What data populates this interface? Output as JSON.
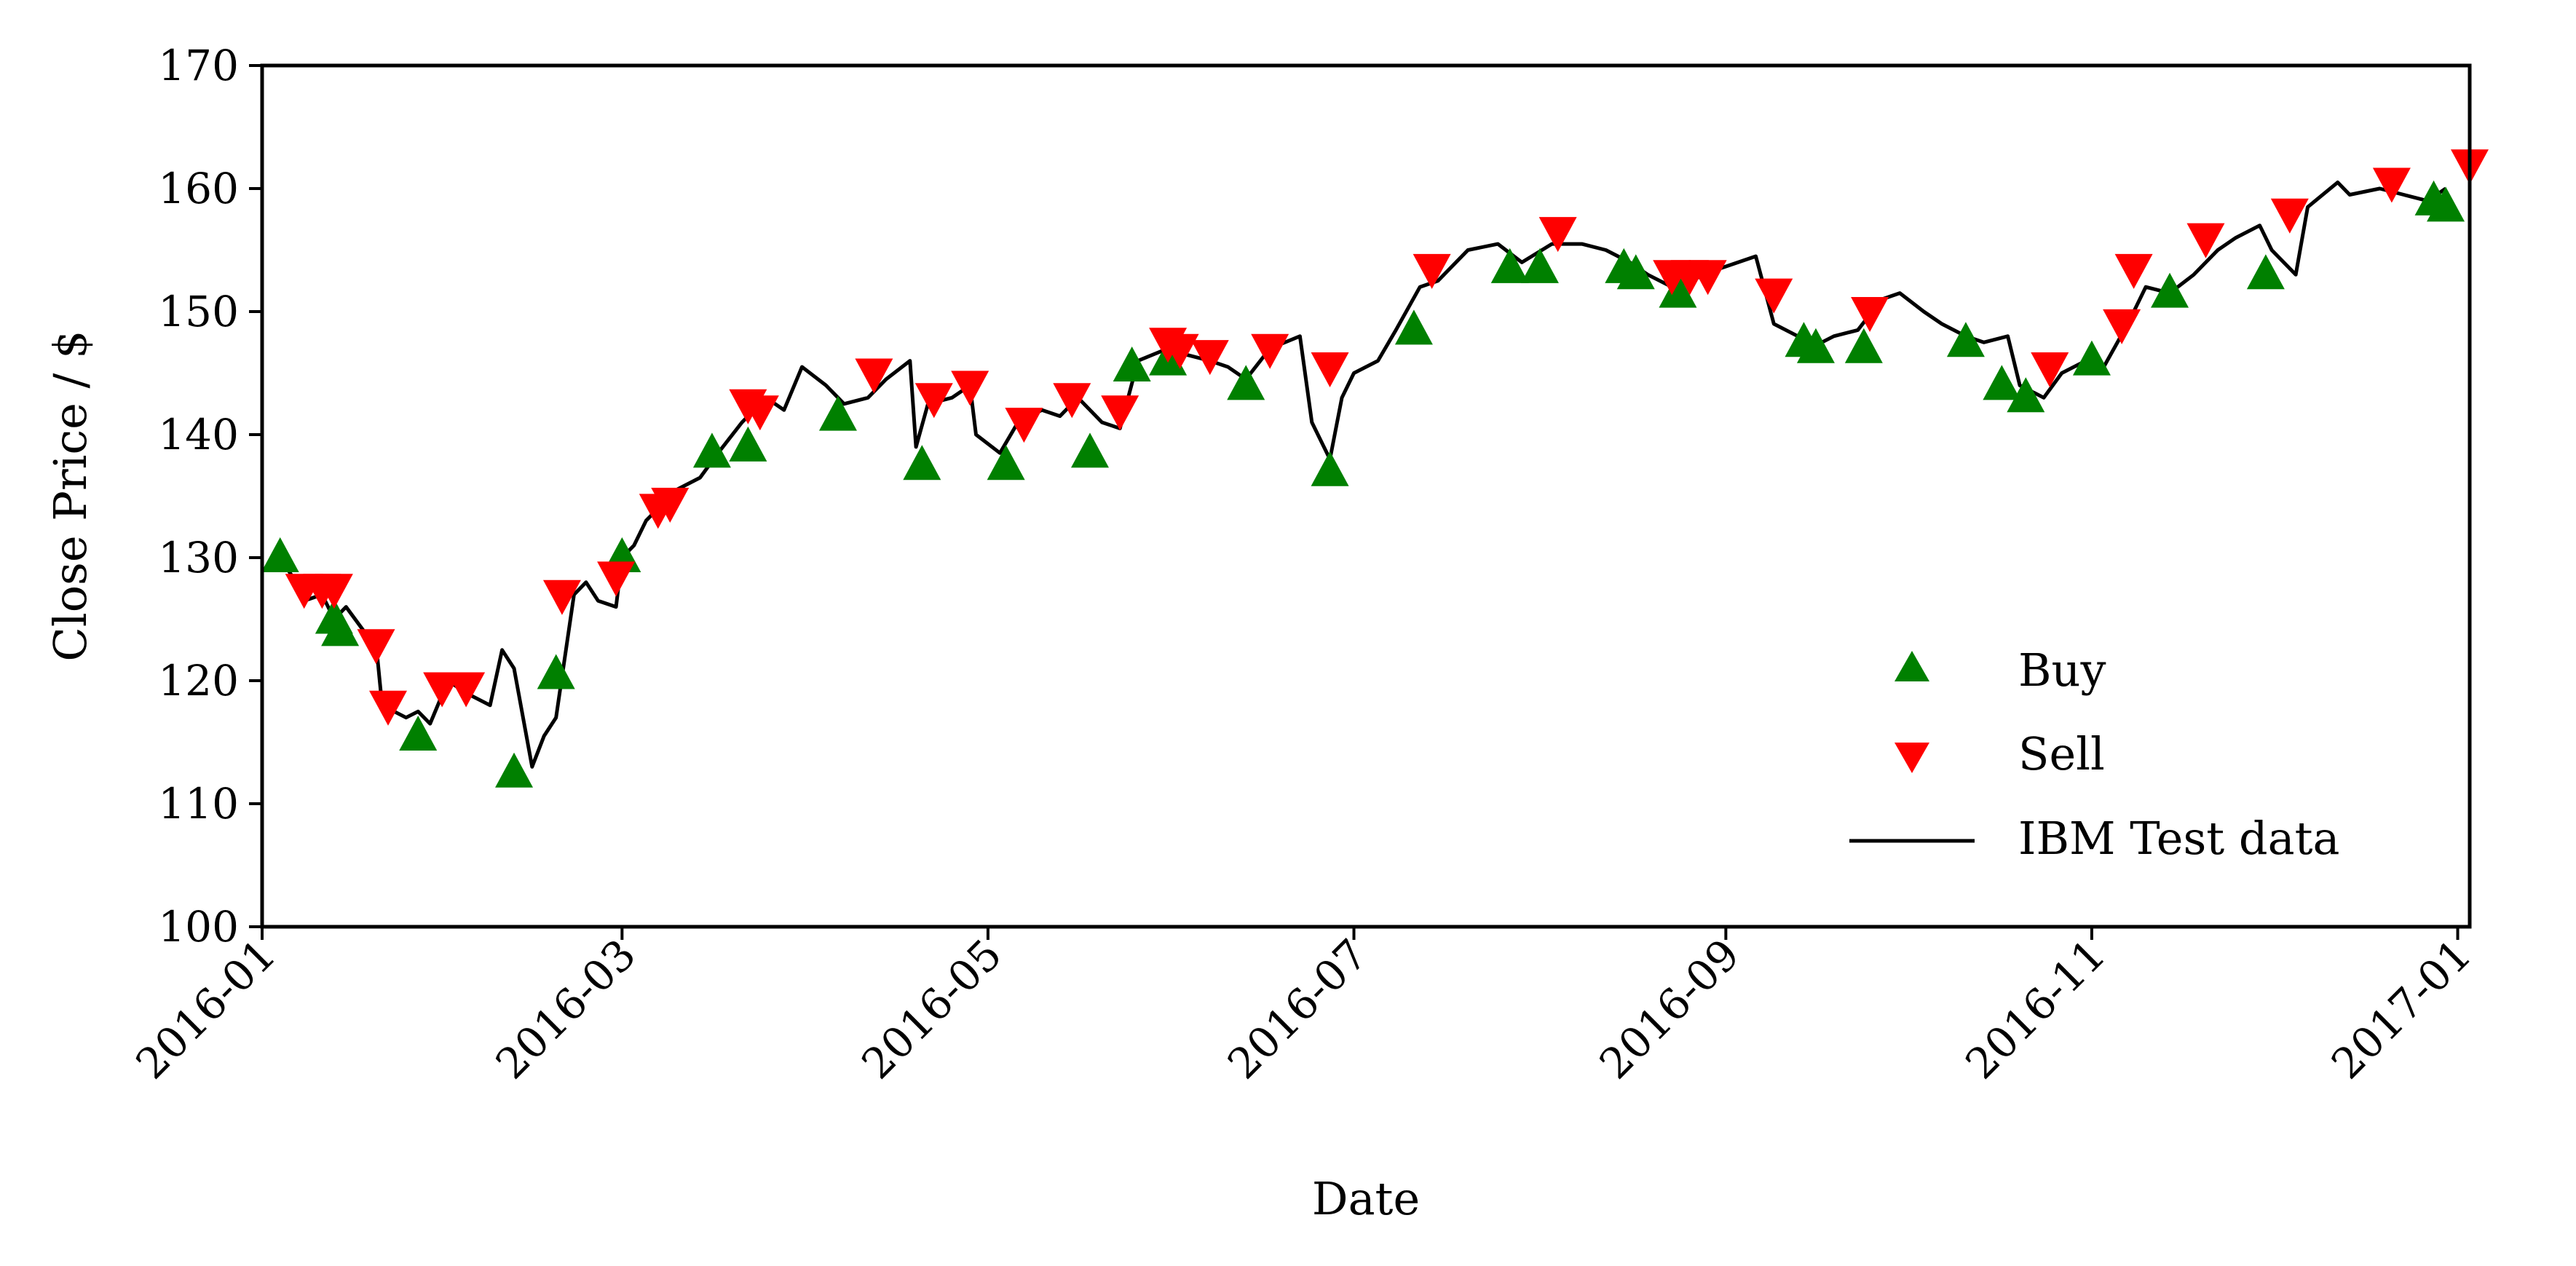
{
  "chart_data": {
    "type": "line",
    "xlabel": "Date",
    "ylabel": "Close Price / $",
    "xlim": [
      "2016-01-01",
      "2017-01-03"
    ],
    "ylim": [
      100,
      170
    ],
    "x_ticks": [
      "2016-01",
      "2016-03",
      "2016-05",
      "2016-07",
      "2016-09",
      "2016-11",
      "2017-01"
    ],
    "y_ticks": [
      100,
      110,
      120,
      130,
      140,
      150,
      160,
      170
    ],
    "grid": false,
    "legend_position": "lower-right",
    "colors": {
      "line": "#000000",
      "buy": "#008000",
      "sell": "#ff0000"
    },
    "series": [
      {
        "name": "IBM Test data",
        "kind": "line",
        "points": [
          [
            "2016-01-04",
            130
          ],
          [
            "2016-01-06",
            128.5
          ],
          [
            "2016-01-08",
            126.5
          ],
          [
            "2016-01-11",
            127
          ],
          [
            "2016-01-13",
            125
          ],
          [
            "2016-01-15",
            126
          ],
          [
            "2016-01-18",
            124
          ],
          [
            "2016-01-20",
            123
          ],
          [
            "2016-01-21",
            118
          ],
          [
            "2016-01-25",
            117
          ],
          [
            "2016-01-27",
            117.5
          ],
          [
            "2016-01-29",
            116.5
          ],
          [
            "2016-02-01",
            120
          ],
          [
            "2016-02-04",
            119
          ],
          [
            "2016-02-08",
            118
          ],
          [
            "2016-02-10",
            122.5
          ],
          [
            "2016-02-12",
            121
          ],
          [
            "2016-02-15",
            113
          ],
          [
            "2016-02-17",
            115.5
          ],
          [
            "2016-02-19",
            117
          ],
          [
            "2016-02-22",
            127
          ],
          [
            "2016-02-24",
            128
          ],
          [
            "2016-02-26",
            126.5
          ],
          [
            "2016-02-29",
            126
          ],
          [
            "2016-03-01",
            130
          ],
          [
            "2016-03-03",
            131
          ],
          [
            "2016-03-05",
            133
          ],
          [
            "2016-03-08",
            134.5
          ],
          [
            "2016-03-10",
            135.5
          ],
          [
            "2016-03-14",
            136.5
          ],
          [
            "2016-03-17",
            138.5
          ],
          [
            "2016-03-21",
            141
          ],
          [
            "2016-03-23",
            142
          ],
          [
            "2016-03-25",
            143
          ],
          [
            "2016-03-28",
            142
          ],
          [
            "2016-03-31",
            145.5
          ],
          [
            "2016-04-04",
            144
          ],
          [
            "2016-04-07",
            142.5
          ],
          [
            "2016-04-11",
            143
          ],
          [
            "2016-04-14",
            144.5
          ],
          [
            "2016-04-18",
            146
          ],
          [
            "2016-04-19",
            139
          ],
          [
            "2016-04-21",
            142.5
          ],
          [
            "2016-04-25",
            143
          ],
          [
            "2016-04-28",
            144
          ],
          [
            "2016-04-29",
            140
          ],
          [
            "2016-05-03",
            138.5
          ],
          [
            "2016-05-06",
            141
          ],
          [
            "2016-05-10",
            142
          ],
          [
            "2016-05-13",
            141.5
          ],
          [
            "2016-05-16",
            143
          ],
          [
            "2016-05-20",
            141
          ],
          [
            "2016-05-23",
            140.5
          ],
          [
            "2016-05-26",
            146
          ],
          [
            "2016-05-31",
            147
          ],
          [
            "2016-06-03",
            146.5
          ],
          [
            "2016-06-07",
            146
          ],
          [
            "2016-06-10",
            145.5
          ],
          [
            "2016-06-13",
            144.5
          ],
          [
            "2016-06-17",
            147
          ],
          [
            "2016-06-22",
            148
          ],
          [
            "2016-06-24",
            141
          ],
          [
            "2016-06-27",
            138
          ],
          [
            "2016-06-29",
            143
          ],
          [
            "2016-07-01",
            145
          ],
          [
            "2016-07-05",
            146
          ],
          [
            "2016-07-08",
            148.5
          ],
          [
            "2016-07-12",
            152
          ],
          [
            "2016-07-15",
            152.5
          ],
          [
            "2016-07-20",
            155
          ],
          [
            "2016-07-25",
            155.5
          ],
          [
            "2016-07-29",
            154
          ],
          [
            "2016-08-03",
            155.5
          ],
          [
            "2016-08-08",
            155.5
          ],
          [
            "2016-08-12",
            155
          ],
          [
            "2016-08-16",
            154
          ],
          [
            "2016-08-19",
            153
          ],
          [
            "2016-08-23",
            152
          ],
          [
            "2016-08-26",
            152.5
          ],
          [
            "2016-08-31",
            153.5
          ],
          [
            "2016-09-06",
            154.5
          ],
          [
            "2016-09-09",
            149
          ],
          [
            "2016-09-13",
            148
          ],
          [
            "2016-09-15",
            147
          ],
          [
            "2016-09-19",
            148
          ],
          [
            "2016-09-23",
            148.5
          ],
          [
            "2016-09-27",
            151
          ],
          [
            "2016-09-30",
            151.5
          ],
          [
            "2016-10-04",
            150
          ],
          [
            "2016-10-07",
            149
          ],
          [
            "2016-10-11",
            148
          ],
          [
            "2016-10-14",
            147.5
          ],
          [
            "2016-10-18",
            148
          ],
          [
            "2016-10-20",
            144
          ],
          [
            "2016-10-24",
            143
          ],
          [
            "2016-10-27",
            145
          ],
          [
            "2016-10-31",
            146
          ],
          [
            "2016-11-03",
            145.5
          ],
          [
            "2016-11-07",
            149
          ],
          [
            "2016-11-10",
            152
          ],
          [
            "2016-11-14",
            151.5
          ],
          [
            "2016-11-18",
            153
          ],
          [
            "2016-11-22",
            155
          ],
          [
            "2016-11-25",
            156
          ],
          [
            "2016-11-29",
            157
          ],
          [
            "2016-12-01",
            155
          ],
          [
            "2016-12-05",
            153
          ],
          [
            "2016-12-07",
            158.5
          ],
          [
            "2016-12-12",
            160.5
          ],
          [
            "2016-12-14",
            159.5
          ],
          [
            "2016-12-19",
            160
          ],
          [
            "2016-12-23",
            159.5
          ],
          [
            "2016-12-27",
            159
          ],
          [
            "2016-12-30",
            160
          ]
        ]
      },
      {
        "name": "Buy",
        "kind": "scatter",
        "marker": "triangle-up",
        "points": [
          [
            "2016-01-04",
            130
          ],
          [
            "2016-01-13",
            125
          ],
          [
            "2016-01-14",
            124
          ],
          [
            "2016-01-27",
            115.5
          ],
          [
            "2016-02-12",
            112.5
          ],
          [
            "2016-02-19",
            120.5
          ],
          [
            "2016-03-01",
            130
          ],
          [
            "2016-03-16",
            138.5
          ],
          [
            "2016-03-22",
            139
          ],
          [
            "2016-04-06",
            141.5
          ],
          [
            "2016-04-20",
            137.5
          ],
          [
            "2016-05-04",
            137.5
          ],
          [
            "2016-05-18",
            138.5
          ],
          [
            "2016-05-25",
            145.5
          ],
          [
            "2016-05-31",
            146
          ],
          [
            "2016-06-13",
            144
          ],
          [
            "2016-06-27",
            137
          ],
          [
            "2016-07-11",
            148.5
          ],
          [
            "2016-07-27",
            153.5
          ],
          [
            "2016-08-01",
            153.5
          ],
          [
            "2016-08-15",
            153.5
          ],
          [
            "2016-08-17",
            153
          ],
          [
            "2016-08-24",
            151.5
          ],
          [
            "2016-09-14",
            147.5
          ],
          [
            "2016-09-16",
            147
          ],
          [
            "2016-09-24",
            147
          ],
          [
            "2016-10-11",
            147.5
          ],
          [
            "2016-10-17",
            144
          ],
          [
            "2016-10-21",
            143
          ],
          [
            "2016-11-01",
            146
          ],
          [
            "2016-11-14",
            151.5
          ],
          [
            "2016-11-30",
            153
          ],
          [
            "2016-12-28",
            159
          ],
          [
            "2016-12-30",
            158.5
          ]
        ]
      },
      {
        "name": "Sell",
        "kind": "scatter",
        "marker": "triangle-down",
        "points": [
          [
            "2016-01-08",
            127.5
          ],
          [
            "2016-01-11",
            127.5
          ],
          [
            "2016-01-13",
            127.5
          ],
          [
            "2016-01-20",
            123
          ],
          [
            "2016-01-22",
            118
          ],
          [
            "2016-01-31",
            119.5
          ],
          [
            "2016-02-04",
            119.5
          ],
          [
            "2016-02-20",
            127
          ],
          [
            "2016-02-29",
            128.5
          ],
          [
            "2016-03-07",
            134
          ],
          [
            "2016-03-09",
            134.5
          ],
          [
            "2016-03-22",
            142.5
          ],
          [
            "2016-03-24",
            142
          ],
          [
            "2016-04-12",
            145
          ],
          [
            "2016-04-22",
            143
          ],
          [
            "2016-04-28",
            144
          ],
          [
            "2016-05-07",
            141
          ],
          [
            "2016-05-15",
            143
          ],
          [
            "2016-05-23",
            142
          ],
          [
            "2016-05-31",
            147.5
          ],
          [
            "2016-06-02",
            147
          ],
          [
            "2016-06-07",
            146.5
          ],
          [
            "2016-06-17",
            147
          ],
          [
            "2016-06-27",
            145.5
          ],
          [
            "2016-07-14",
            153.5
          ],
          [
            "2016-08-04",
            156.5
          ],
          [
            "2016-08-23",
            153
          ],
          [
            "2016-08-26",
            153
          ],
          [
            "2016-08-29",
            153
          ],
          [
            "2016-09-09",
            151.5
          ],
          [
            "2016-09-25",
            150
          ],
          [
            "2016-10-25",
            145.5
          ],
          [
            "2016-11-06",
            149
          ],
          [
            "2016-11-08",
            153.5
          ],
          [
            "2016-11-20",
            156
          ],
          [
            "2016-12-04",
            158
          ],
          [
            "2016-12-21",
            160.5
          ],
          [
            "2017-01-03",
            162
          ]
        ]
      }
    ]
  }
}
